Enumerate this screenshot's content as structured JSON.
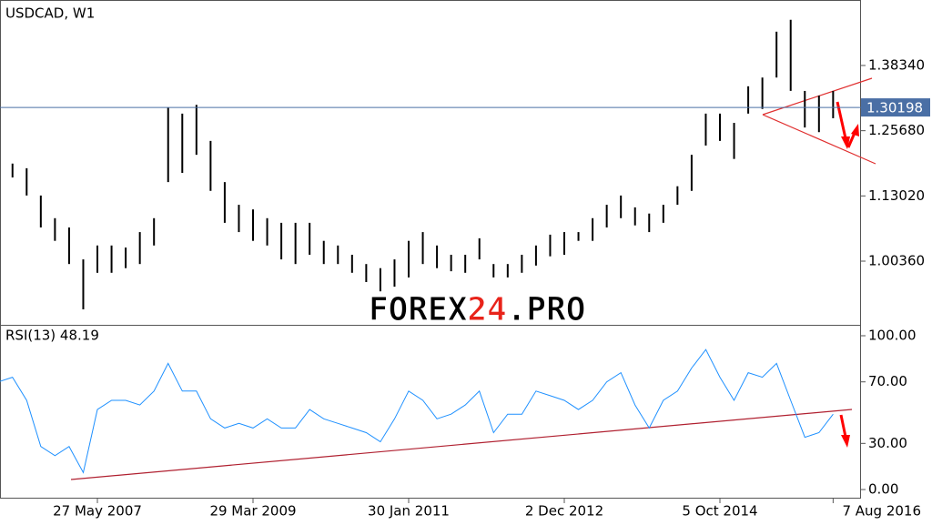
{
  "chart_data": [
    {
      "type": "range-bar",
      "title": "USDCAD, W1",
      "color": "#000000",
      "high": [
        1.184,
        1.193,
        1.184,
        1.131,
        1.087,
        1.069,
        1.007,
        1.034,
        1.034,
        1.03,
        1.06,
        1.087,
        1.302,
        1.29,
        1.307,
        1.237,
        1.157,
        1.113,
        1.104,
        1.087,
        1.078,
        1.078,
        1.078,
        1.043,
        1.034,
        1.016,
        0.998,
        0.99,
        1.007,
        1.043,
        1.06,
        1.034,
        1.016,
        1.016,
        1.048,
        0.998,
        0.998,
        1.016,
        1.034,
        1.055,
        1.06,
        1.06,
        1.087,
        1.113,
        1.131,
        1.108,
        1.096,
        1.113,
        1.149,
        1.21,
        1.29,
        1.29,
        1.272,
        1.343,
        1.36,
        1.449,
        1.472,
        1.334,
        1.325,
        1.334
      ],
      "low": [
        1.14,
        1.166,
        1.131,
        1.069,
        1.043,
        0.998,
        0.91,
        0.981,
        0.981,
        0.99,
        0.998,
        1.034,
        1.157,
        1.175,
        1.21,
        1.14,
        1.078,
        1.06,
        1.043,
        1.034,
        1.007,
        0.998,
        1.016,
        0.998,
        0.998,
        0.981,
        0.963,
        0.945,
        0.954,
        0.972,
        0.998,
        0.99,
        0.984,
        0.981,
        1.007,
        0.972,
        0.972,
        0.981,
        0.995,
        1.013,
        1.016,
        1.043,
        1.043,
        1.069,
        1.087,
        1.073,
        1.06,
        1.078,
        1.113,
        1.14,
        1.228,
        1.237,
        1.202,
        1.29,
        1.299,
        1.36,
        1.334,
        1.263,
        1.254,
        1.281
      ],
      "ylim": [
        0.88,
        1.5105
      ],
      "yticks": [
        {
          "value": 1.3834,
          "label": "1.38340"
        },
        {
          "value": 1.2568,
          "label": "1.25680"
        },
        {
          "value": 1.1302,
          "label": "1.13020"
        },
        {
          "value": 1.0036,
          "label": "1.00360"
        }
      ],
      "current_price": 1.30198,
      "current_price_color": "#4a6fa5"
    },
    {
      "type": "line",
      "title": "RSI(13) 48.19",
      "color": "#1e90ff",
      "categories": [
        null,
        null,
        null,
        null,
        null,
        null,
        null,
        "27 May 2007",
        null,
        null,
        null,
        null,
        null,
        null,
        null,
        null,
        null,
        null,
        "29 Mar 2009",
        null,
        null,
        null,
        null,
        null,
        null,
        null,
        null,
        null,
        null,
        "30 Jan 2011",
        null,
        null,
        null,
        null,
        null,
        null,
        null,
        null,
        null,
        null,
        "2 Dec 2012",
        null,
        null,
        null,
        null,
        null,
        null,
        null,
        null,
        null,
        null,
        "5 Oct 2014",
        null,
        null,
        null,
        null,
        null,
        null,
        null,
        "7 Aug 2016"
      ],
      "values": [
        70,
        73,
        58,
        28,
        22,
        28,
        11,
        52,
        58,
        58,
        55,
        64,
        82,
        64,
        64,
        46,
        40,
        43,
        40,
        46,
        40,
        40,
        52,
        46,
        43,
        40,
        37,
        31,
        46,
        64,
        58,
        46,
        49,
        55,
        64,
        37,
        49,
        49,
        64,
        61,
        58,
        52,
        58,
        70,
        76,
        55,
        40,
        58,
        64,
        79,
        91,
        73,
        58,
        76,
        73,
        82,
        58,
        34,
        37,
        49
      ],
      "ylim": [
        -5.9,
        106.5
      ],
      "yticks": [
        {
          "value": 100,
          "label": "100.00"
        },
        {
          "value": 70,
          "label": "70.00"
        },
        {
          "value": 30,
          "label": "30.00"
        },
        {
          "value": 0,
          "label": "0.00"
        }
      ]
    }
  ],
  "watermark": {
    "prefix": "FOREX",
    "number": "24",
    "suffix": ".PRO"
  }
}
